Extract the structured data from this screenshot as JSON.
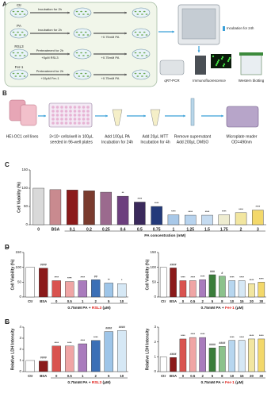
{
  "panel_a": {
    "letter": "A",
    "rows": [
      {
        "label": "Ctr",
        "step": "Incubation for 2h",
        "treatment": null,
        "pa": null
      },
      {
        "label": "PA",
        "step": "Incubation for 2h",
        "treatment": null,
        "pa": "+0.75mM PA"
      },
      {
        "label": "RSL3",
        "step": "Pretreatment for 2h",
        "treatment": "+5μM RSL3",
        "pa": "+0.75mM PA"
      },
      {
        "label": "Fer-1",
        "step": "Pretreatment for 2h",
        "treatment": "+10μM Fer-1",
        "pa": "+0.75mM PA"
      }
    ],
    "incubation": "Incubation for 24h",
    "assays": [
      "qRT-PCR",
      "Immunofluorescence",
      "Western blotting"
    ]
  },
  "panel_b": {
    "letter": "B",
    "steps": [
      {
        "lines": [
          "HEI-OC1 cell lines"
        ]
      },
      {
        "lines": [
          "3×10⁴ cells/well in 100μL",
          "seeded in 96-well plates"
        ]
      },
      {
        "lines": [
          "Add 100μL PA",
          "Incubation for 24h"
        ]
      },
      {
        "lines": [
          "Add 20μL MTT",
          "Incubation for 4h"
        ]
      },
      {
        "lines": [
          "Remove supernatant",
          "Add 200μL DMSO"
        ]
      },
      {
        "lines": [
          "Microplate reader",
          "OD=490nm"
        ]
      }
    ]
  },
  "chart_data": [
    {
      "type": "bar",
      "panel": "C",
      "ylabel": "Cell Viability (%)",
      "xlabel": [
        "PA concentration (mM)"
      ],
      "categories": [
        "0",
        "BSA",
        "0.1",
        "0.2",
        "0.25",
        "0.4",
        "0.5",
        "0.75",
        "1",
        "1.25",
        "1.5",
        "1.75",
        "2",
        "3"
      ],
      "values": [
        100,
        96,
        95,
        93,
        89,
        78,
        62,
        50,
        27,
        26,
        26,
        27,
        33,
        40
      ],
      "annotations": [
        null,
        null,
        null,
        null,
        null,
        "**",
        "****",
        "****",
        "****",
        "****",
        "****",
        "****",
        "****",
        "****"
      ],
      "colors": [
        "#d9d9d9",
        "#c98a8f",
        "#8b1a1a",
        "#7a3b2e",
        "#9b6a8e",
        "#6c3f7e",
        "#3b2a5c",
        "#233a7a",
        "#a8c8e8",
        "#b7d3ee",
        "#c5dbf0",
        "#eeecd0",
        "#f2e6a0",
        "#f3d86a"
      ],
      "ylim": [
        0,
        150
      ],
      "yticks": [
        0,
        50,
        100,
        150
      ],
      "grid": false
    },
    {
      "type": "bar",
      "panel": "D",
      "ylabel": "Cell Viability (%)",
      "xlabel": [
        "0.75mM PA + ",
        "RSL3",
        " (μM)"
      ],
      "categories": [
        "Ctr",
        "BSA",
        "0",
        "0.5",
        "1",
        "2",
        "5",
        "10"
      ],
      "values": [
        100,
        97,
        55,
        52,
        55,
        58,
        47,
        45
      ],
      "annotations": [
        null,
        "####",
        "****",
        "****",
        "****",
        "##",
        "**",
        "*"
      ],
      "colors": [
        "#ffffff",
        "#8b1a1a",
        "#d9534f",
        "#f0a5a5",
        "#a97bbd",
        "#3b6fb6",
        "#9ec5e8",
        "#d6e8f5"
      ],
      "ylim": [
        0,
        150
      ],
      "yticks": [
        0,
        50,
        100,
        150
      ],
      "grid": false
    },
    {
      "type": "bar",
      "panel": "E",
      "ylabel": "Relative LDH Intensity",
      "xlabel": [
        "0.75mM PA + ",
        "RSL3",
        " (μM)"
      ],
      "categories": [
        "Ctr",
        "BSA",
        "0",
        "0.5",
        "1",
        "2",
        "5",
        "10"
      ],
      "values": [
        1,
        0.95,
        2.3,
        2.3,
        2.5,
        2.8,
        3.6,
        3.7
      ],
      "annotations": [
        null,
        "####",
        "****",
        "****",
        "****",
        "****",
        "####",
        "####"
      ],
      "colors": [
        "#ffffff",
        "#8b1a1a",
        "#d9534f",
        "#f0a5a5",
        "#a97bbd",
        "#3b6fb6",
        "#9ec5e8",
        "#d6e8f5"
      ],
      "ylim": [
        0,
        4
      ],
      "yticks": [
        0,
        1,
        2,
        3,
        4
      ],
      "grid": false
    },
    {
      "type": "bar",
      "panel": "F",
      "ylabel": "Cell Viability (%)",
      "xlabel": [
        "0.75mM PA + ",
        "Fer-1",
        " (μM)"
      ],
      "categories": [
        "Ctr",
        "BSA",
        "0",
        "0.5",
        "2",
        "5",
        "8",
        "10",
        "15",
        "20",
        "30"
      ],
      "values": [
        100,
        98,
        55,
        55,
        58,
        75,
        70,
        55,
        55,
        45,
        50
      ],
      "annotations": [
        null,
        "####",
        "****",
        "****",
        "****",
        "###",
        "#",
        "****",
        "****",
        "****",
        "****"
      ],
      "colors": [
        "#ffffff",
        "#8b1a1a",
        "#d9534f",
        "#f0a5a5",
        "#a97bbd",
        "#3a7d3a",
        "#8cc28c",
        "#b7d6ef",
        "#d6e8f5",
        "#f2e6a0",
        "#f3d86a"
      ],
      "ylim": [
        0,
        150
      ],
      "yticks": [
        0,
        50,
        100,
        150
      ],
      "grid": false
    },
    {
      "type": "bar",
      "panel": "G",
      "ylabel": "Relative LDH Intensity",
      "xlabel": [
        "0.75mM PA + ",
        "Fer-1",
        " (μM)"
      ],
      "categories": [
        "Ctr",
        "BSA",
        "0",
        "0.5",
        "2",
        "5",
        "8",
        "10",
        "15",
        "20",
        "30"
      ],
      "values": [
        1,
        0.95,
        2.2,
        2.3,
        2.3,
        1.6,
        1.7,
        2.1,
        2.1,
        2.2,
        2.2
      ],
      "annotations": [
        null,
        "####",
        "****",
        "****",
        "****",
        "####",
        "####",
        "****",
        "****",
        "****",
        "****"
      ],
      "colors": [
        "#ffffff",
        "#8b1a1a",
        "#d9534f",
        "#f0a5a5",
        "#a97bbd",
        "#3a7d3a",
        "#8cc28c",
        "#b7d6ef",
        "#d6e8f5",
        "#f2e6a0",
        "#f3d86a"
      ],
      "ylim": [
        0,
        3
      ],
      "yticks": [
        0,
        1,
        2,
        3
      ],
      "grid": false
    }
  ]
}
